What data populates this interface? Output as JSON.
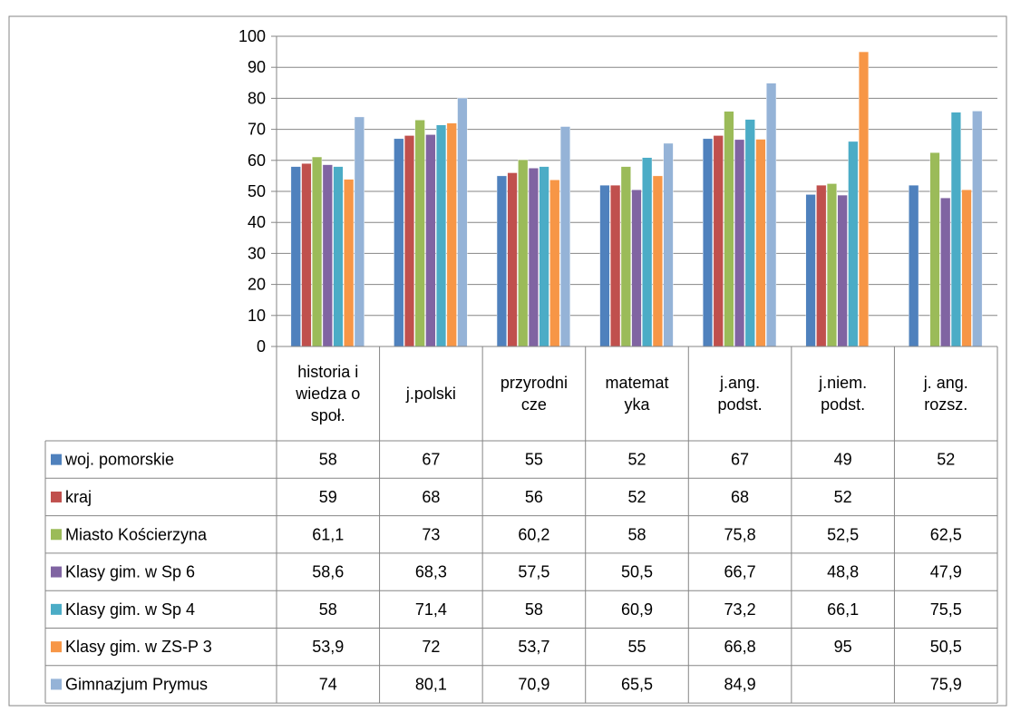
{
  "chart_data": {
    "type": "bar",
    "title": "",
    "xlabel": "",
    "ylabel": "",
    "ylim": [
      0,
      100
    ],
    "yticks": [
      0,
      10,
      20,
      30,
      40,
      50,
      60,
      70,
      80,
      90,
      100
    ],
    "grid": true,
    "legend": "data-table-left",
    "categories": [
      [
        "historia i",
        "wiedza o",
        "społ."
      ],
      [
        "j.polski"
      ],
      [
        "przyrodni",
        "cze"
      ],
      [
        "matemat",
        "yka"
      ],
      [
        "j.ang.",
        "podst."
      ],
      [
        "j.niem.",
        "podst."
      ],
      [
        "j. ang.",
        "rozsz."
      ]
    ],
    "series": [
      {
        "name": "woj.  pomorskie",
        "color": "#4f81bd",
        "values": [
          58,
          67,
          55,
          52,
          67,
          49,
          52
        ],
        "labels": [
          "58",
          "67",
          "55",
          "52",
          "67",
          "49",
          "52"
        ]
      },
      {
        "name": "kraj",
        "color": "#c0504d",
        "values": [
          59,
          68,
          56,
          52,
          68,
          52,
          null
        ],
        "labels": [
          "59",
          "68",
          "56",
          "52",
          "68",
          "52",
          ""
        ]
      },
      {
        "name": "Miasto Kościerzyna",
        "color": "#9bbb59",
        "values": [
          61.1,
          73,
          60.2,
          58,
          75.8,
          52.5,
          62.5
        ],
        "labels": [
          "61,1",
          "73",
          "60,2",
          "58",
          "75,8",
          "52,5",
          "62,5"
        ]
      },
      {
        "name": "Klasy gim. w Sp 6",
        "color": "#8064a2",
        "values": [
          58.6,
          68.3,
          57.5,
          50.5,
          66.7,
          48.8,
          47.9
        ],
        "labels": [
          "58,6",
          "68,3",
          "57,5",
          "50,5",
          "66,7",
          "48,8",
          "47,9"
        ]
      },
      {
        "name": "Klasy gim. w Sp 4",
        "color": "#4bacc6",
        "values": [
          58,
          71.4,
          58,
          60.9,
          73.2,
          66.1,
          75.5
        ],
        "labels": [
          "58",
          "71,4",
          "58",
          "60,9",
          "73,2",
          "66,1",
          "75,5"
        ]
      },
      {
        "name": "Klasy gim. w ZS-P 3",
        "color": "#f79646",
        "values": [
          53.9,
          72,
          53.7,
          55,
          66.8,
          95,
          50.5
        ],
        "labels": [
          "53,9",
          "72",
          "53,7",
          "55",
          "66,8",
          "95",
          "50,5"
        ]
      },
      {
        "name": "Gimnazjum Prymus",
        "color": "#95b3d7",
        "values": [
          74,
          80.1,
          70.9,
          65.5,
          84.9,
          null,
          75.9
        ],
        "labels": [
          "74",
          "80,1",
          "70,9",
          "65,5",
          "84,9",
          "",
          "75,9"
        ]
      }
    ]
  }
}
